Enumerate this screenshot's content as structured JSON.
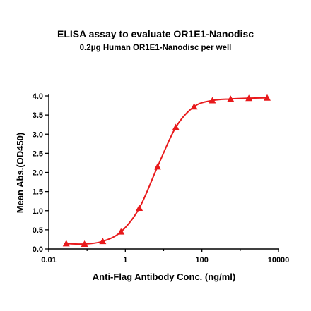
{
  "chart_data": {
    "type": "line",
    "title": "ELISA assay to evaluate OR1E1-Nanodisc",
    "subtitle": "0.2μg Human OR1E1-Nanodisc per well",
    "xlabel": "Anti-Flag Antibody Conc. (ng/ml)",
    "ylabel": "Mean Abs.(OD450)",
    "xscale": "log",
    "xlim": [
      0.01,
      10000
    ],
    "ylim": [
      0,
      4.0
    ],
    "xticks": [
      0.01,
      1,
      100,
      10000
    ],
    "xtick_labels": [
      "0.01",
      "1",
      "100",
      "10000"
    ],
    "yticks": [
      0.0,
      0.5,
      1.0,
      1.5,
      2.0,
      2.5,
      3.0,
      3.5,
      4.0
    ],
    "ytick_labels": [
      "0.0",
      "0.5",
      "1.0",
      "1.5",
      "2.0",
      "2.5",
      "3.0",
      "3.5",
      "4.0"
    ],
    "grid": false,
    "color": "#e8191b",
    "marker": "triangle",
    "series": [
      {
        "x": [
          0.0286,
          0.0858,
          0.257,
          0.772,
          2.32,
          6.95,
          20.8,
          62.5,
          187.5,
          562.5,
          1687.5,
          5062.5
        ],
        "y": [
          0.14,
          0.13,
          0.2,
          0.45,
          1.07,
          2.15,
          3.18,
          3.72,
          3.88,
          3.92,
          3.94,
          3.95
        ]
      }
    ]
  }
}
